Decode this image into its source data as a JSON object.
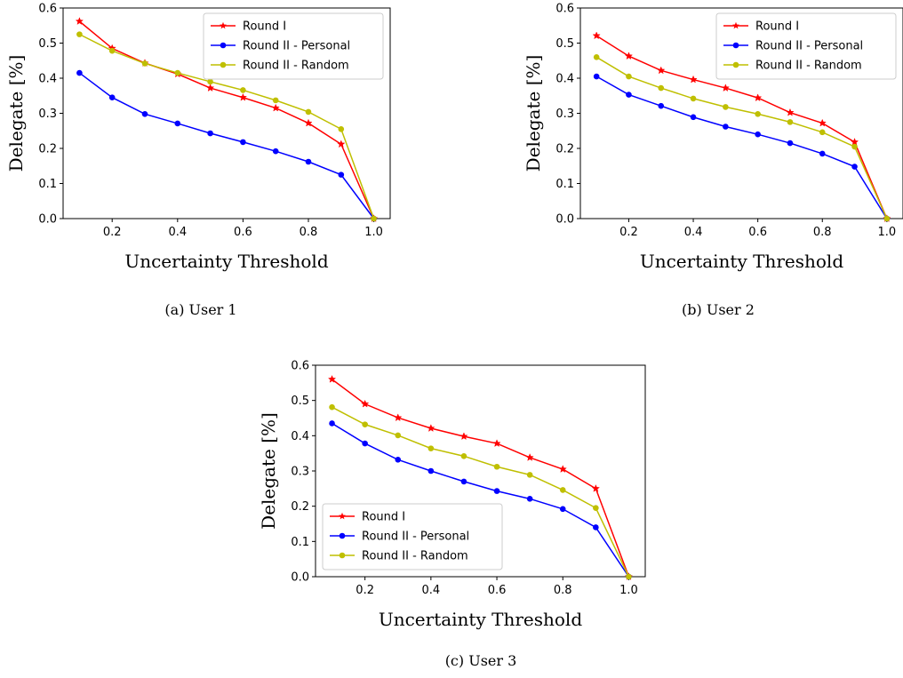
{
  "colors": {
    "round1": "#ff0000",
    "round2_personal": "#0000ff",
    "round2_random": "#bfbf00"
  },
  "chart_data": [
    {
      "type": "line",
      "caption": "(a) User 1",
      "xlabel": "Uncertainty Threshold",
      "ylabel": "Delegate [%]",
      "xlim": [
        0.05,
        1.05
      ],
      "ylim": [
        0.0,
        0.6
      ],
      "xticks": [
        "0.2",
        "0.4",
        "0.6",
        "0.8",
        "1.0"
      ],
      "yticks": [
        "0.0",
        "0.1",
        "0.2",
        "0.3",
        "0.4",
        "0.5",
        "0.6"
      ],
      "legend_position": "top-right",
      "x": [
        0.1,
        0.2,
        0.3,
        0.4,
        0.5,
        0.6,
        0.7,
        0.8,
        0.9,
        1.0
      ],
      "series": [
        {
          "name": "Round I",
          "marker": "star",
          "color": "#ff0000",
          "values": [
            0.562,
            0.485,
            0.443,
            0.412,
            0.372,
            0.345,
            0.315,
            0.272,
            0.212,
            0.0
          ]
        },
        {
          "name": "Round II - Personal",
          "marker": "circle",
          "color": "#0000ff",
          "values": [
            0.415,
            0.345,
            0.298,
            0.271,
            0.243,
            0.218,
            0.192,
            0.162,
            0.125,
            0.0
          ]
        },
        {
          "name": "Round II - Random",
          "marker": "circle",
          "color": "#bfbf00",
          "values": [
            0.525,
            0.478,
            0.442,
            0.415,
            0.39,
            0.366,
            0.337,
            0.304,
            0.255,
            0.0
          ]
        }
      ]
    },
    {
      "type": "line",
      "caption": "(b) User 2",
      "xlabel": "Uncertainty Threshold",
      "ylabel": "Delegate [%]",
      "xlim": [
        0.05,
        1.05
      ],
      "ylim": [
        0.0,
        0.6
      ],
      "xticks": [
        "0.2",
        "0.4",
        "0.6",
        "0.8",
        "1.0"
      ],
      "yticks": [
        "0.0",
        "0.1",
        "0.2",
        "0.3",
        "0.4",
        "0.5",
        "0.6"
      ],
      "legend_position": "top-right",
      "x": [
        0.1,
        0.2,
        0.3,
        0.4,
        0.5,
        0.6,
        0.7,
        0.8,
        0.9,
        1.0
      ],
      "series": [
        {
          "name": "Round I",
          "marker": "star",
          "color": "#ff0000",
          "values": [
            0.521,
            0.463,
            0.422,
            0.396,
            0.372,
            0.344,
            0.302,
            0.272,
            0.218,
            0.0
          ]
        },
        {
          "name": "Round II - Personal",
          "marker": "circle",
          "color": "#0000ff",
          "values": [
            0.405,
            0.353,
            0.321,
            0.289,
            0.262,
            0.24,
            0.215,
            0.185,
            0.148,
            0.0
          ]
        },
        {
          "name": "Round II - Random",
          "marker": "circle",
          "color": "#bfbf00",
          "values": [
            0.46,
            0.405,
            0.372,
            0.342,
            0.318,
            0.298,
            0.275,
            0.246,
            0.205,
            0.0
          ]
        }
      ]
    },
    {
      "type": "line",
      "caption": "(c) User 3",
      "xlabel": "Uncertainty Threshold",
      "ylabel": "Delegate [%]",
      "xlim": [
        0.05,
        1.05
      ],
      "ylim": [
        0.0,
        0.6
      ],
      "xticks": [
        "0.2",
        "0.4",
        "0.6",
        "0.8",
        "1.0"
      ],
      "yticks": [
        "0.0",
        "0.1",
        "0.2",
        "0.3",
        "0.4",
        "0.5",
        "0.6"
      ],
      "legend_position": "lower-left",
      "x": [
        0.1,
        0.2,
        0.3,
        0.4,
        0.5,
        0.6,
        0.7,
        0.8,
        0.9,
        1.0
      ],
      "series": [
        {
          "name": "Round I",
          "marker": "star",
          "color": "#ff0000",
          "values": [
            0.56,
            0.49,
            0.451,
            0.421,
            0.398,
            0.378,
            0.338,
            0.305,
            0.25,
            0.0
          ]
        },
        {
          "name": "Round II - Personal",
          "marker": "circle",
          "color": "#0000ff",
          "values": [
            0.435,
            0.378,
            0.332,
            0.3,
            0.27,
            0.243,
            0.221,
            0.192,
            0.14,
            0.0
          ]
        },
        {
          "name": "Round II - Random",
          "marker": "circle",
          "color": "#bfbf00",
          "values": [
            0.481,
            0.432,
            0.401,
            0.364,
            0.342,
            0.312,
            0.289,
            0.246,
            0.195,
            0.0
          ]
        }
      ]
    }
  ]
}
